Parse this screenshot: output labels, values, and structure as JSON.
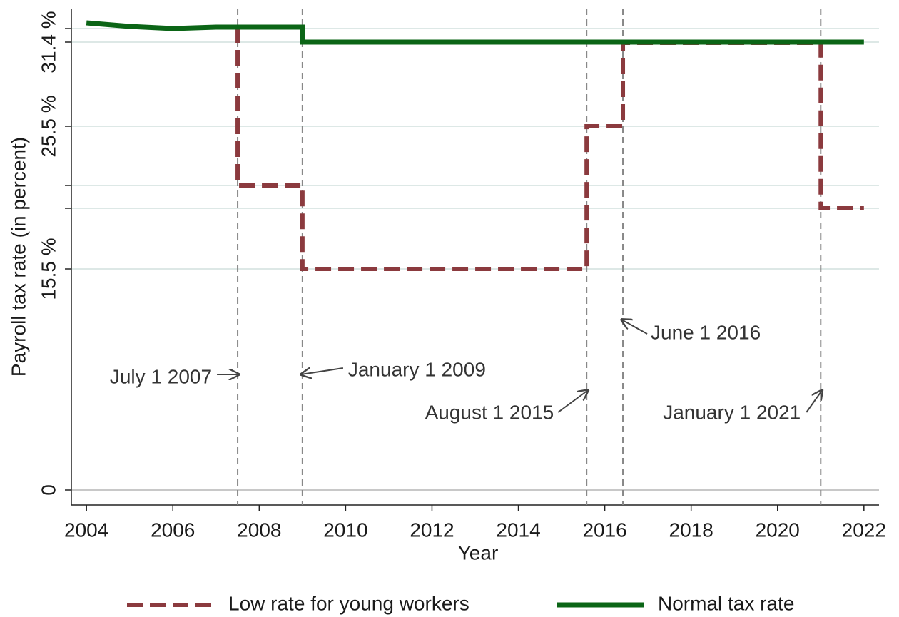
{
  "chart_data": {
    "type": "line",
    "x_label": "Year",
    "y_label": "Payroll tax rate (in percent)",
    "xlim": [
      2003.65,
      2022.35
    ],
    "xticks": [
      2004,
      2006,
      2008,
      2010,
      2012,
      2014,
      2016,
      2018,
      2020,
      2022
    ],
    "ylim": [
      -1.05,
      33.75
    ],
    "yticks": [
      0,
      {
        "value": 15.5,
        "label": "15.5 %"
      },
      {
        "value": 25.5,
        "label": "25.5 %"
      },
      {
        "value": 31.4,
        "label": "31.4 %"
      }
    ],
    "yticks_minor": [
      19.75,
      21.35,
      32.35
    ],
    "grid": true,
    "legend": "bottom",
    "series": [
      {
        "name": "Low rate for young workers",
        "color": "#8b3a3e",
        "dashed": true,
        "x": [
          2007.5,
          2007.5,
          2009,
          2009,
          2015.58,
          2015.58,
          2016.42,
          2016.42,
          2021,
          2021,
          2022
        ],
        "values": [
          32.45,
          21.35,
          21.35,
          15.5,
          15.5,
          25.5,
          25.5,
          31.35,
          31.35,
          19.75,
          19.75
        ]
      },
      {
        "name": "Normal tax rate",
        "color": "#0b6516",
        "dashed": false,
        "x": [
          2004,
          2005,
          2006,
          2007,
          2009,
          2009,
          2022
        ],
        "values": [
          32.75,
          32.5,
          32.35,
          32.45,
          32.45,
          31.4,
          31.4
        ]
      }
    ],
    "annotations": [
      {
        "text": "July 1 2007",
        "x": 2007.5,
        "y": 8.1
      },
      {
        "text": "January 1 2009",
        "x": 2009,
        "y": 8.1
      },
      {
        "text": "August 1 2015",
        "x": 2015.58,
        "y": 7
      },
      {
        "text": "June 1 2016",
        "x": 2016.42,
        "y": 11.95
      },
      {
        "text": "January 1 2021",
        "x": 2021,
        "y": 7
      }
    ]
  }
}
